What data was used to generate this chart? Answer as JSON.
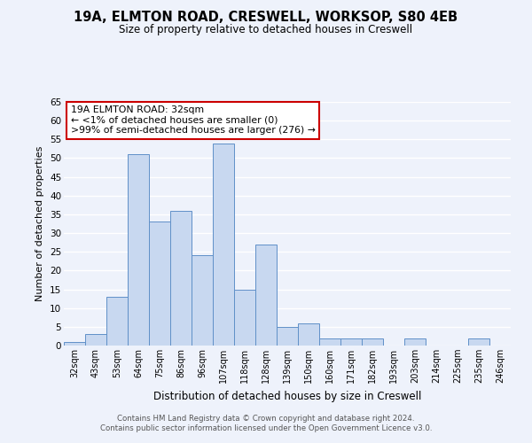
{
  "title": "19A, ELMTON ROAD, CRESWELL, WORKSOP, S80 4EB",
  "subtitle": "Size of property relative to detached houses in Creswell",
  "xlabel": "Distribution of detached houses by size in Creswell",
  "ylabel": "Number of detached properties",
  "bar_color": "#c8d8f0",
  "bar_edge_color": "#6090c8",
  "categories": [
    "32sqm",
    "43sqm",
    "53sqm",
    "64sqm",
    "75sqm",
    "86sqm",
    "96sqm",
    "107sqm",
    "118sqm",
    "128sqm",
    "139sqm",
    "150sqm",
    "160sqm",
    "171sqm",
    "182sqm",
    "193sqm",
    "203sqm",
    "214sqm",
    "225sqm",
    "235sqm",
    "246sqm"
  ],
  "values": [
    1,
    3,
    13,
    51,
    33,
    36,
    24,
    54,
    15,
    27,
    5,
    6,
    2,
    2,
    2,
    0,
    2,
    0,
    0,
    2,
    0
  ],
  "ylim": [
    0,
    65
  ],
  "yticks": [
    0,
    5,
    10,
    15,
    20,
    25,
    30,
    35,
    40,
    45,
    50,
    55,
    60,
    65
  ],
  "annotation_title": "19A ELMTON ROAD: 32sqm",
  "annotation_line1": "← <1% of detached houses are smaller (0)",
  "annotation_line2": ">99% of semi-detached houses are larger (276) →",
  "annotation_box_color": "#ffffff",
  "annotation_box_edge": "#cc0000",
  "footer_line1": "Contains HM Land Registry data © Crown copyright and database right 2024.",
  "footer_line2": "Contains public sector information licensed under the Open Government Licence v3.0.",
  "background_color": "#eef2fb",
  "grid_color": "#ffffff"
}
